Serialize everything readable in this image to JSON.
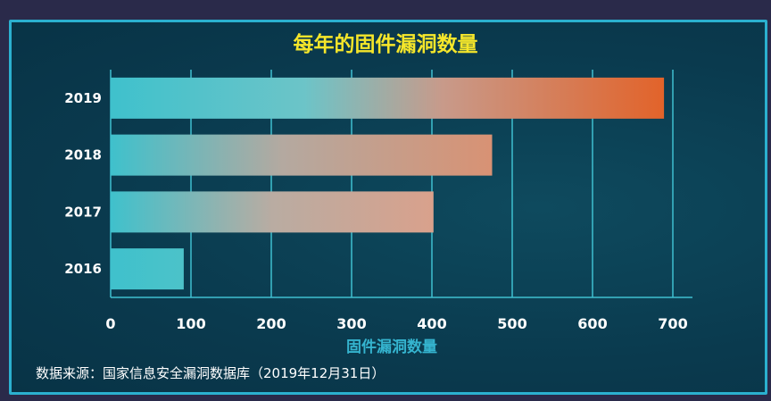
{
  "chart_data": {
    "type": "bar",
    "orientation": "horizontal",
    "title": "每年的固件漏洞数量",
    "xlabel": "固件漏洞数量",
    "ylabel": "",
    "categories": [
      "2019",
      "2018",
      "2017",
      "2016"
    ],
    "values": [
      689,
      475,
      402,
      91
    ],
    "xlim": [
      0,
      700
    ],
    "xticks": [
      "0",
      "100",
      "200",
      "300",
      "400",
      "500",
      "600",
      "700"
    ],
    "grid": "vertical",
    "colors": {
      "start": "#3fc1cc",
      "end_max": "#e2632a",
      "grid": "#3fbfd0"
    }
  },
  "source": "数据来源：国家信息安全漏洞数据库（2019年12月31日）"
}
